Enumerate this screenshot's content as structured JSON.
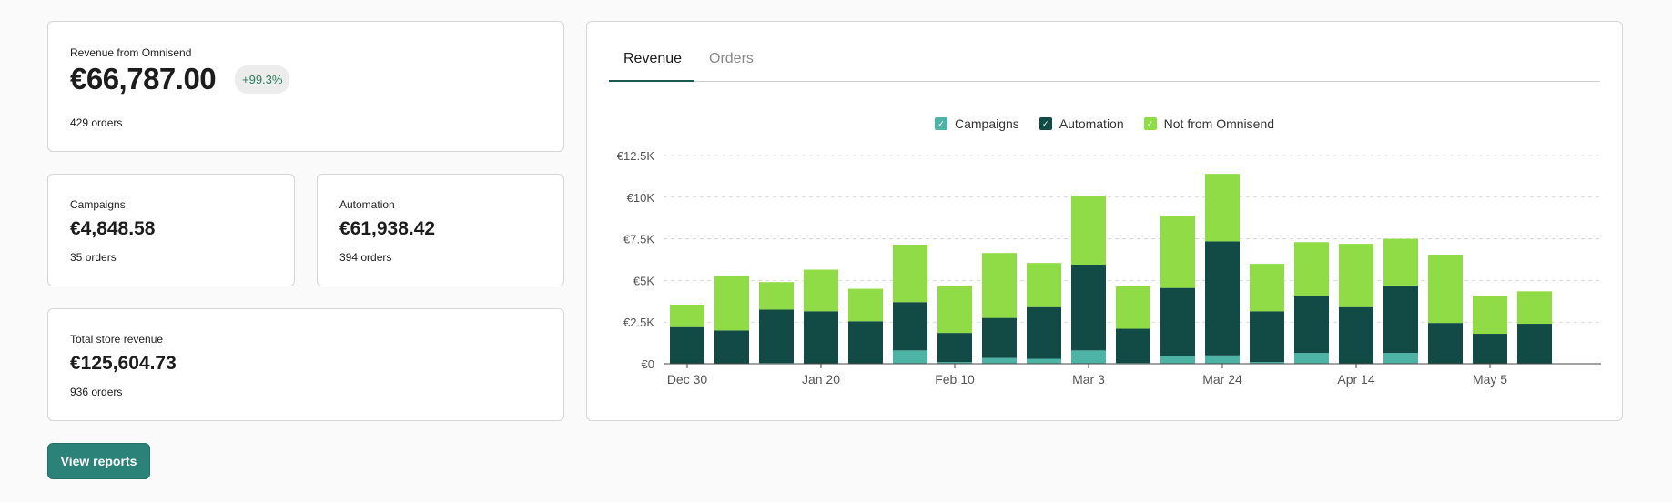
{
  "summary": {
    "label": "Revenue from Omnisend",
    "value": "€66,787.00",
    "badge": "+99.3%",
    "orders_count": "429",
    "orders_word": "orders"
  },
  "campaigns": {
    "label": "Campaigns",
    "value": "€4,848.58",
    "orders_count": "35",
    "orders_word": "orders"
  },
  "automation": {
    "label": "Automation",
    "value": "€61,938.42",
    "orders_count": "394",
    "orders_word": "orders"
  },
  "total": {
    "label": "Total store revenue",
    "value": "€125,604.73",
    "orders_count": "936",
    "orders_word": "orders"
  },
  "button": {
    "label": "View reports"
  },
  "tabs": [
    {
      "label": "Revenue",
      "active": true
    },
    {
      "label": "Orders",
      "active": false
    }
  ],
  "legend": [
    {
      "label": "Campaigns",
      "color": "#4db3a5"
    },
    {
      "label": "Automation",
      "color": "#124b45"
    },
    {
      "label": "Not from Omnisend",
      "color": "#8fdc46"
    }
  ],
  "chart_data": {
    "type": "bar",
    "stacked": true,
    "y_ticks": [
      "€0",
      "€2.5K",
      "€5K",
      "€7.5K",
      "€10K",
      "€12.5K"
    ],
    "x_tick_labels": [
      {
        "label": "Dec 30",
        "index": 0
      },
      {
        "label": "Jan 20",
        "index": 3
      },
      {
        "label": "Feb 10",
        "index": 6
      },
      {
        "label": "Mar 3",
        "index": 9
      },
      {
        "label": "Mar 24",
        "index": 12
      },
      {
        "label": "Apr 14",
        "index": 15
      },
      {
        "label": "May 5",
        "index": 18
      }
    ],
    "ylim": [
      0,
      12500
    ],
    "grid": true,
    "legend_position": "top-center",
    "series": [
      {
        "name": "Campaigns",
        "color": "#4db3a5",
        "values": [
          0,
          0,
          50,
          0,
          0,
          800,
          100,
          350,
          300,
          800,
          50,
          450,
          500,
          100,
          650,
          0,
          650,
          0,
          0,
          0
        ]
      },
      {
        "name": "Automation",
        "color": "#124b45",
        "values": [
          2200,
          2000,
          3200,
          3150,
          2550,
          2900,
          1750,
          2400,
          3100,
          5150,
          2050,
          4100,
          6850,
          3050,
          3400,
          3400,
          4050,
          2450,
          1800,
          2400
        ]
      },
      {
        "name": "Not from Omnisend",
        "color": "#8fdc46",
        "values": [
          1350,
          3250,
          1650,
          2500,
          1950,
          3450,
          2800,
          3900,
          2650,
          4150,
          2550,
          4350,
          4050,
          2850,
          3250,
          3800,
          2800,
          4100,
          2250,
          1950
        ]
      }
    ]
  }
}
